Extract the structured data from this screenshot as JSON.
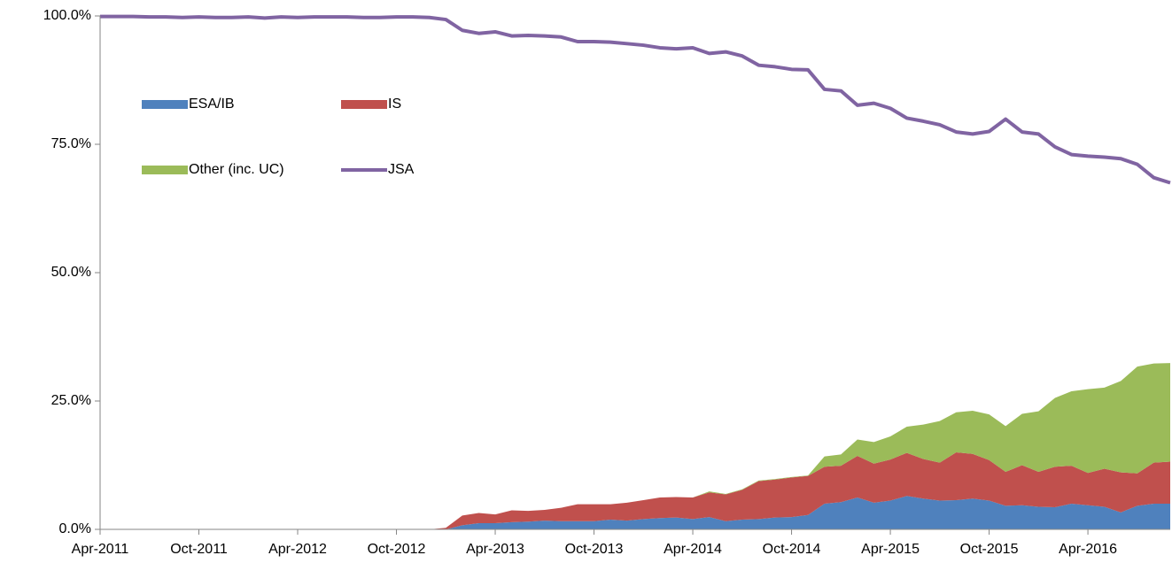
{
  "chart_data": {
    "type": "stacked-area-line",
    "categories": [
      "Apr-2011",
      null,
      null,
      null,
      null,
      null,
      "Oct-2011",
      null,
      null,
      null,
      null,
      null,
      "Apr-2012",
      null,
      null,
      null,
      null,
      null,
      "Oct-2012",
      null,
      null,
      null,
      null,
      null,
      "Apr-2013",
      null,
      null,
      null,
      null,
      null,
      "Oct-2013",
      null,
      null,
      null,
      null,
      null,
      "Apr-2014",
      null,
      null,
      null,
      null,
      null,
      "Oct-2014",
      null,
      null,
      null,
      null,
      null,
      "Apr-2015",
      null,
      null,
      null,
      null,
      null,
      "Oct-2015",
      null,
      null,
      null,
      null,
      null,
      "Apr-2016",
      null,
      null,
      null,
      null,
      null
    ],
    "series": [
      {
        "name": "ESA/IB",
        "color": "#4f81bd",
        "kind": "area",
        "values": [
          0,
          0,
          0,
          0,
          0,
          0,
          0,
          0,
          0,
          0,
          0,
          0,
          0,
          0,
          0,
          0,
          0,
          0,
          0,
          0,
          0,
          0,
          0.8,
          1.2,
          1.2,
          1.4,
          1.5,
          1.7,
          1.6,
          1.6,
          1.6,
          1.9,
          1.7,
          2.0,
          2.2,
          2.3,
          2.0,
          2.4,
          1.6,
          1.9,
          2.0,
          2.3,
          2.4,
          2.8,
          5.0,
          5.3,
          6.2,
          5.2,
          5.6,
          6.5,
          6.0,
          5.6,
          5.7,
          6.0,
          5.6,
          4.6,
          4.7,
          4.4,
          4.3,
          5.0,
          4.7,
          4.4,
          3.3,
          4.6,
          5.0,
          5.0
        ]
      },
      {
        "name": "IS",
        "color": "#c0504d",
        "kind": "area",
        "values": [
          0,
          0,
          0,
          0,
          0,
          0,
          0,
          0,
          0,
          0,
          0,
          0,
          0,
          0,
          0,
          0,
          0,
          0,
          0,
          0,
          0,
          0.3,
          1.9,
          2.0,
          1.7,
          2.3,
          2.1,
          2.1,
          2.6,
          3.3,
          3.3,
          3.0,
          3.5,
          3.7,
          4.0,
          4.0,
          4.2,
          4.8,
          5.2,
          5.8,
          7.4,
          7.4,
          7.7,
          7.6,
          7.2,
          7.1,
          8.1,
          7.6,
          8.0,
          8.4,
          7.7,
          7.4,
          9.3,
          8.7,
          7.9,
          6.6,
          7.8,
          6.8,
          7.9,
          7.4,
          6.3,
          7.4,
          7.8,
          6.3,
          8.0,
          8.2
        ]
      },
      {
        "name": "Other (inc. UC)",
        "color": "#9bbb59",
        "kind": "area",
        "values": [
          0,
          0,
          0,
          0,
          0,
          0,
          0,
          0,
          0,
          0,
          0,
          0,
          0,
          0,
          0,
          0,
          0,
          0,
          0,
          0,
          0,
          0,
          0,
          0,
          0,
          0,
          0,
          0,
          0,
          0,
          0,
          0,
          0,
          0,
          0,
          0,
          0,
          0.2,
          0.1,
          0.1,
          0.1,
          0.1,
          0.1,
          0.1,
          2.0,
          2.2,
          3.2,
          4.2,
          4.5,
          5.1,
          6.7,
          8.1,
          7.8,
          8.4,
          8.9,
          8.9,
          10.0,
          11.8,
          13.4,
          14.5,
          16.3,
          15.8,
          17.8,
          20.8,
          19.3,
          19.2
        ]
      },
      {
        "name": "JSA",
        "color": "#8064a2",
        "kind": "line",
        "values": [
          99.9,
          99.9,
          99.9,
          99.8,
          99.8,
          99.7,
          99.8,
          99.7,
          99.7,
          99.8,
          99.6,
          99.8,
          99.7,
          99.8,
          99.8,
          99.8,
          99.7,
          99.7,
          99.8,
          99.8,
          99.7,
          99.3,
          97.2,
          96.6,
          96.9,
          96.1,
          96.2,
          96.1,
          95.9,
          95.0,
          95.0,
          94.9,
          94.6,
          94.3,
          93.8,
          93.6,
          93.8,
          92.7,
          93.0,
          92.2,
          90.4,
          90.1,
          89.6,
          89.5,
          85.7,
          85.4,
          82.6,
          83.0,
          82.0,
          80.1,
          79.5,
          78.8,
          77.4,
          77.0,
          77.5,
          79.9,
          77.4,
          77.0,
          74.5,
          73.0,
          72.7,
          72.5,
          72.2,
          71.1,
          68.5,
          67.5
        ]
      }
    ],
    "ylim": [
      0,
      100
    ],
    "yticks": [
      {
        "value": 0,
        "label": "0.0%"
      },
      {
        "value": 25,
        "label": "25.0%"
      },
      {
        "value": 50,
        "label": "50.0%"
      },
      {
        "value": 75,
        "label": "75.0%"
      },
      {
        "value": 100,
        "label": "100.0%"
      }
    ],
    "grid": false,
    "legend": "upper left"
  }
}
